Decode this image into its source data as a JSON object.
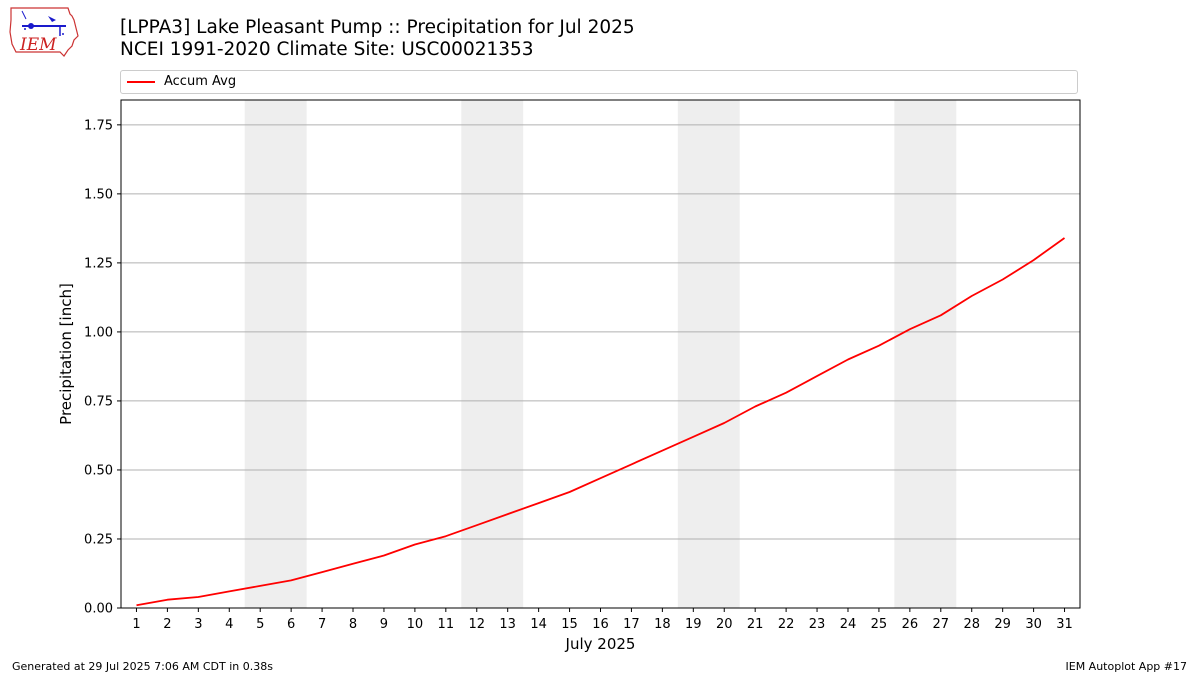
{
  "header": {
    "title_line1": "[LPPA3] Lake Pleasant Pump :: Precipitation for Jul 2025",
    "title_line2": "NCEI 1991-2020 Climate Site: USC00021353"
  },
  "logo": {
    "text": "IEM"
  },
  "footer": {
    "generated": "Generated at 29 Jul 2025 7:06 AM CDT in 0.38s",
    "app": "IEM Autoplot App #17"
  },
  "colors": {
    "series": "#ff0000",
    "weekend_band": "#eeeeee",
    "grid": "#b0b0b0"
  },
  "chart_data": {
    "type": "line",
    "xlabel": "July 2025",
    "ylabel": "Precipitation [inch]",
    "xlim": [
      0.5,
      31.5
    ],
    "ylim": [
      0,
      1.84
    ],
    "yticks": [
      0.0,
      0.25,
      0.5,
      0.75,
      1.0,
      1.25,
      1.5,
      1.75
    ],
    "ytick_labels": [
      "0.00",
      "0.25",
      "0.50",
      "0.75",
      "1.00",
      "1.25",
      "1.50",
      "1.75"
    ],
    "xticks": [
      1,
      2,
      3,
      4,
      5,
      6,
      7,
      8,
      9,
      10,
      11,
      12,
      13,
      14,
      15,
      16,
      17,
      18,
      19,
      20,
      21,
      22,
      23,
      24,
      25,
      26,
      27,
      28,
      29,
      30,
      31
    ],
    "grid": "horizontal",
    "legend_placement": "top",
    "shaded_days": [
      [
        5,
        6
      ],
      [
        12,
        13
      ],
      [
        19,
        20
      ],
      [
        26,
        27
      ]
    ],
    "series": [
      {
        "name": "Accum Avg",
        "x": [
          1,
          2,
          3,
          4,
          5,
          6,
          7,
          8,
          9,
          10,
          11,
          12,
          13,
          14,
          15,
          16,
          17,
          18,
          19,
          20,
          21,
          22,
          23,
          24,
          25,
          26,
          27,
          28,
          29,
          30,
          31
        ],
        "values": [
          0.01,
          0.03,
          0.04,
          0.06,
          0.08,
          0.1,
          0.13,
          0.16,
          0.19,
          0.23,
          0.26,
          0.3,
          0.34,
          0.38,
          0.42,
          0.47,
          0.52,
          0.57,
          0.62,
          0.67,
          0.73,
          0.78,
          0.84,
          0.9,
          0.95,
          1.01,
          1.06,
          1.13,
          1.19,
          1.26,
          1.34
        ]
      }
    ]
  }
}
